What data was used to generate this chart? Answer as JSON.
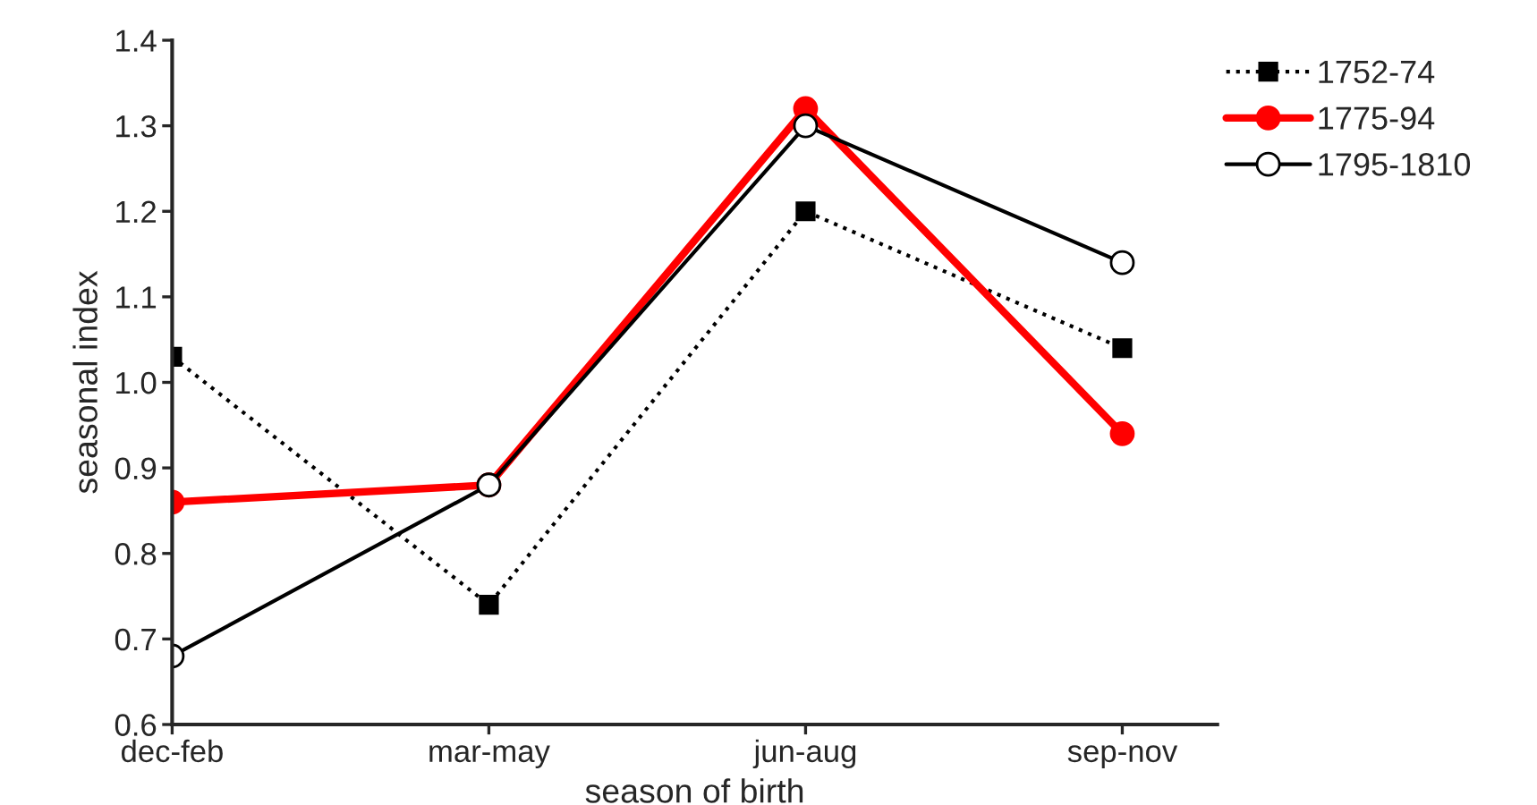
{
  "chart_data": {
    "type": "line",
    "xlabel": "season of birth",
    "ylabel": "seasonal index",
    "categories": [
      "dec-feb",
      "mar-may",
      "jun-aug",
      "sep-nov"
    ],
    "series": [
      {
        "name": "1752-74",
        "color": "#000000",
        "values": [
          1.03,
          0.74,
          1.2,
          1.04
        ],
        "marker": "square",
        "line_style": "dotted"
      },
      {
        "name": "1775-94",
        "color": "#ff0000",
        "values": [
          0.86,
          0.88,
          1.32,
          0.94
        ],
        "marker": "circle",
        "line_style": "solid"
      },
      {
        "name": "1795-1810",
        "color": "#000000",
        "values": [
          0.68,
          0.88,
          1.3,
          1.14
        ],
        "marker": "circle",
        "line_style": "solid"
      }
    ],
    "ylim": [
      0.6,
      1.4
    ],
    "yticks": [
      {
        "value": 0.6,
        "label": "0.6"
      },
      {
        "value": 0.7,
        "label": "0.7"
      },
      {
        "value": 0.8,
        "label": "0.8"
      },
      {
        "value": 0.9,
        "label": "0.9"
      },
      {
        "value": 1.0,
        "label": "1.0"
      },
      {
        "value": 1.1,
        "label": "1.1"
      },
      {
        "value": 1.2,
        "label": "1.2"
      },
      {
        "value": 1.3,
        "label": "1.3"
      },
      {
        "value": 1.4,
        "label": "1.4"
      }
    ],
    "grid": false,
    "legend": "top right"
  }
}
